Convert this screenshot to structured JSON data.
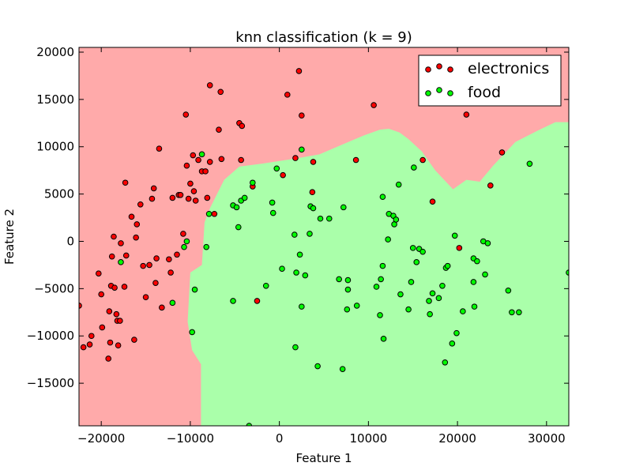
{
  "chart_data": {
    "type": "scatter",
    "title": "knn classification (k = 9)",
    "xlabel": "Feature 1",
    "ylabel": "Feature 2",
    "xlim": [
      -22500,
      32500
    ],
    "ylim": [
      -19500,
      20500
    ],
    "x_ticks": [
      -20000,
      -10000,
      0,
      10000,
      20000,
      30000
    ],
    "x_tick_labels": [
      "−20000",
      "−10000",
      "0",
      "10000",
      "20000",
      "30000"
    ],
    "y_ticks": [
      -15000,
      -10000,
      -5000,
      0,
      5000,
      10000,
      15000,
      20000
    ],
    "y_tick_labels": [
      "−15000",
      "−10000",
      "−5000",
      "0",
      "5000",
      "10000",
      "15000",
      "20000"
    ],
    "legend_position": "top-right",
    "region_colors": {
      "electronics": "#FFAAAA",
      "food": "#AAFFAA"
    },
    "decision_boundary": [
      [
        -8800,
        -19500
      ],
      [
        -8800,
        -13000
      ],
      [
        -9800,
        -11500
      ],
      [
        -10300,
        -8500
      ],
      [
        -10000,
        -3300
      ],
      [
        -8700,
        -2500
      ],
      [
        -8400,
        2000
      ],
      [
        -7800,
        3500
      ],
      [
        -6200,
        6500
      ],
      [
        -4500,
        7900
      ],
      [
        -2000,
        8200
      ],
      [
        1500,
        8700
      ],
      [
        4500,
        9200
      ],
      [
        8000,
        10600
      ],
      [
        9500,
        11200
      ],
      [
        11300,
        11800
      ],
      [
        12300,
        11900
      ],
      [
        13500,
        11500
      ],
      [
        14500,
        10800
      ],
      [
        16000,
        9500
      ],
      [
        17500,
        7500
      ],
      [
        19500,
        5500
      ],
      [
        21000,
        6500
      ],
      [
        22500,
        6300
      ],
      [
        24000,
        8000
      ],
      [
        26500,
        10500
      ],
      [
        29000,
        11700
      ],
      [
        31000,
        12600
      ],
      [
        32500,
        12600
      ]
    ],
    "series": [
      {
        "name": "electronics",
        "color": "#FF0000",
        "points": [
          [
            -22500,
            -6800
          ],
          [
            -22000,
            -11200
          ],
          [
            -21300,
            -10900
          ],
          [
            -21100,
            -10000
          ],
          [
            -20300,
            -3400
          ],
          [
            -20000,
            -5600
          ],
          [
            -19900,
            -9100
          ],
          [
            -19200,
            -12400
          ],
          [
            -19100,
            -7400
          ],
          [
            -19000,
            -10700
          ],
          [
            -18900,
            -4700
          ],
          [
            -18800,
            -1600
          ],
          [
            -18600,
            500
          ],
          [
            -18500,
            -4900
          ],
          [
            -18300,
            -7700
          ],
          [
            -18200,
            -8400
          ],
          [
            -18100,
            -11000
          ],
          [
            -17900,
            -8400
          ],
          [
            -17800,
            -200
          ],
          [
            -17400,
            -4800
          ],
          [
            -17300,
            6200
          ],
          [
            -17200,
            -1500
          ],
          [
            -16600,
            2600
          ],
          [
            -16300,
            -10400
          ],
          [
            -16100,
            400
          ],
          [
            -16000,
            1800
          ],
          [
            -15600,
            3900
          ],
          [
            -15300,
            -2600
          ],
          [
            -15000,
            -5900
          ],
          [
            -14600,
            -2500
          ],
          [
            -14300,
            4500
          ],
          [
            -14100,
            5600
          ],
          [
            -13900,
            -4400
          ],
          [
            -13800,
            -1800
          ],
          [
            -13500,
            9800
          ],
          [
            -13200,
            -7000
          ],
          [
            -12400,
            -1900
          ],
          [
            -12200,
            -3300
          ],
          [
            -12000,
            4600
          ],
          [
            -11500,
            -1400
          ],
          [
            -11300,
            4900
          ],
          [
            -11100,
            4900
          ],
          [
            -10800,
            800
          ],
          [
            -10500,
            13400
          ],
          [
            -10400,
            8000
          ],
          [
            -10200,
            4500
          ],
          [
            -10000,
            6100
          ],
          [
            -9700,
            9100
          ],
          [
            -9600,
            5300
          ],
          [
            -9400,
            4300
          ],
          [
            -9100,
            8600
          ],
          [
            -8700,
            7400
          ],
          [
            -8300,
            7400
          ],
          [
            -8100,
            4600
          ],
          [
            -7800,
            8400
          ],
          [
            -7800,
            16500
          ],
          [
            -7300,
            2900
          ],
          [
            -6800,
            11800
          ],
          [
            -6600,
            15800
          ],
          [
            -6500,
            8700
          ],
          [
            -4500,
            12500
          ],
          [
            -4300,
            8600
          ],
          [
            -4200,
            12200
          ],
          [
            -3000,
            5800
          ],
          [
            -2500,
            -6300
          ],
          [
            400,
            7000
          ],
          [
            900,
            15500
          ],
          [
            1800,
            8800
          ],
          [
            2200,
            18000
          ],
          [
            2500,
            13300
          ],
          [
            3700,
            5200
          ],
          [
            3800,
            8400
          ],
          [
            8600,
            8600
          ],
          [
            10600,
            14400
          ],
          [
            16100,
            8600
          ],
          [
            17200,
            4200
          ],
          [
            20200,
            -700
          ],
          [
            21000,
            13400
          ],
          [
            23700,
            5900
          ],
          [
            25000,
            9400
          ]
        ]
      },
      {
        "name": "food",
        "color": "#00FF00",
        "points": [
          [
            -17800,
            -2200
          ],
          [
            -12000,
            -6500
          ],
          [
            -10700,
            -600
          ],
          [
            -10400,
            0
          ],
          [
            -9800,
            -9600
          ],
          [
            -9500,
            -5100
          ],
          [
            -8700,
            9200
          ],
          [
            -8200,
            -600
          ],
          [
            -7900,
            2900
          ],
          [
            -5200,
            3800
          ],
          [
            -5200,
            -6300
          ],
          [
            -4800,
            3600
          ],
          [
            -4600,
            1500
          ],
          [
            -4300,
            4300
          ],
          [
            -3900,
            4600
          ],
          [
            -3400,
            -19500
          ],
          [
            -3000,
            6200
          ],
          [
            -1500,
            -4700
          ],
          [
            -800,
            4100
          ],
          [
            -700,
            3000
          ],
          [
            -300,
            7700
          ],
          [
            300,
            -2900
          ],
          [
            1700,
            700
          ],
          [
            1800,
            -11200
          ],
          [
            1900,
            -3300
          ],
          [
            2300,
            -1400
          ],
          [
            2500,
            -6900
          ],
          [
            2500,
            9700
          ],
          [
            2900,
            -3600
          ],
          [
            3400,
            800
          ],
          [
            3500,
            3700
          ],
          [
            3800,
            3500
          ],
          [
            4300,
            -13200
          ],
          [
            4600,
            2400
          ],
          [
            5600,
            2400
          ],
          [
            6700,
            -4000
          ],
          [
            7200,
            3600
          ],
          [
            7100,
            -13500
          ],
          [
            7600,
            -7200
          ],
          [
            7700,
            -4100
          ],
          [
            7700,
            -5100
          ],
          [
            8700,
            -6800
          ],
          [
            10900,
            -4800
          ],
          [
            11300,
            -7800
          ],
          [
            11400,
            -4000
          ],
          [
            11600,
            -2600
          ],
          [
            11600,
            4700
          ],
          [
            11700,
            -10300
          ],
          [
            12200,
            200
          ],
          [
            12300,
            2900
          ],
          [
            12800,
            2700
          ],
          [
            12900,
            1800
          ],
          [
            13100,
            2300
          ],
          [
            13400,
            6000
          ],
          [
            13600,
            -5600
          ],
          [
            14500,
            -7200
          ],
          [
            14800,
            -4300
          ],
          [
            15000,
            -700
          ],
          [
            15100,
            7800
          ],
          [
            15400,
            -2200
          ],
          [
            15700,
            -800
          ],
          [
            16100,
            -1100
          ],
          [
            16800,
            -6300
          ],
          [
            16900,
            -7700
          ],
          [
            17200,
            -5500
          ],
          [
            17900,
            -6000
          ],
          [
            18300,
            -4700
          ],
          [
            18600,
            -12800
          ],
          [
            18700,
            -2800
          ],
          [
            18900,
            -2600
          ],
          [
            19400,
            -10800
          ],
          [
            19700,
            600
          ],
          [
            19900,
            -9700
          ],
          [
            20600,
            -7400
          ],
          [
            21800,
            -4300
          ],
          [
            21800,
            -1800
          ],
          [
            21900,
            -6900
          ],
          [
            22200,
            -2100
          ],
          [
            22900,
            0
          ],
          [
            23100,
            -3500
          ],
          [
            23400,
            -200
          ],
          [
            25700,
            -5200
          ],
          [
            26100,
            -7500
          ],
          [
            26900,
            -7500
          ],
          [
            28100,
            8200
          ],
          [
            32500,
            -3300
          ]
        ]
      }
    ]
  }
}
